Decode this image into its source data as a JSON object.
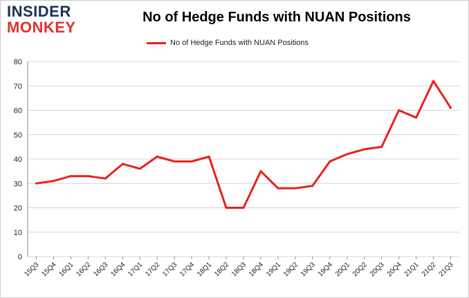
{
  "brand": {
    "line1": "INSIDER",
    "line2": "MONKEY"
  },
  "chart_data": {
    "type": "line",
    "title": "No of Hedge Funds with NUAN Positions",
    "xlabel": "",
    "ylabel": "",
    "categories": [
      "15Q3",
      "15Q4",
      "16Q1",
      "16Q2",
      "16Q3",
      "16Q4",
      "17Q1",
      "17Q2",
      "17Q3",
      "17Q4",
      "18Q1",
      "18Q2",
      "18Q3",
      "18Q4",
      "19Q1",
      "19Q2",
      "19Q3",
      "19Q4",
      "20Q1",
      "20Q2",
      "20Q3",
      "20Q4",
      "21Q1",
      "21Q2",
      "21Q3"
    ],
    "series": [
      {
        "name": "No of Hedge Funds with NUAN Positions",
        "color": "#e8201d",
        "values": [
          30,
          31,
          33,
          33,
          32,
          38,
          36,
          41,
          39,
          39,
          41,
          20,
          20,
          35,
          28,
          28,
          29,
          39,
          42,
          44,
          45,
          60,
          57,
          72,
          61
        ]
      }
    ],
    "ylim": [
      0,
      80
    ],
    "yticks": [
      0,
      10,
      20,
      30,
      40,
      50,
      60,
      70,
      80
    ],
    "grid": true,
    "legend_position": "top-center"
  }
}
